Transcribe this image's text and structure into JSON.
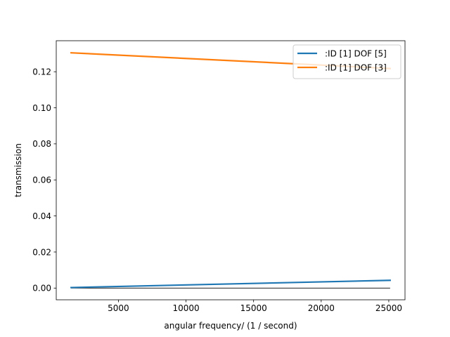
{
  "chart_data": {
    "type": "line",
    "xlabel": "angular frequency/ (1 / second)",
    "ylabel": "transmission",
    "xlim": [
      400,
      26200
    ],
    "ylim": [
      -0.0065,
      0.1372
    ],
    "x_ticks": [
      5000,
      10000,
      15000,
      20000,
      25000
    ],
    "x_tick_labels": [
      "5000",
      "10000",
      "15000",
      "20000",
      "25000"
    ],
    "y_ticks": [
      0.0,
      0.02,
      0.04,
      0.06,
      0.08,
      0.1,
      0.12
    ],
    "y_tick_labels": [
      "0.00",
      "0.02",
      "0.04",
      "0.06",
      "0.08",
      "0.10",
      "0.12"
    ],
    "grid": false,
    "legend_position": "top-right",
    "reference_line": {
      "y": 0.0,
      "x_from": 1500,
      "x_to": 25100,
      "color": "#000000"
    },
    "series": [
      {
        "name": ":ID [1] DOF [5]",
        "color": "#1f77b4",
        "x": [
          1500,
          25100
        ],
        "y": [
          0.0003,
          0.0043
        ]
      },
      {
        "name": ":ID [1] DOF [3]",
        "color": "#ff7f0e",
        "x": [
          1500,
          25100
        ],
        "y": [
          0.1305,
          0.1218
        ]
      }
    ]
  }
}
